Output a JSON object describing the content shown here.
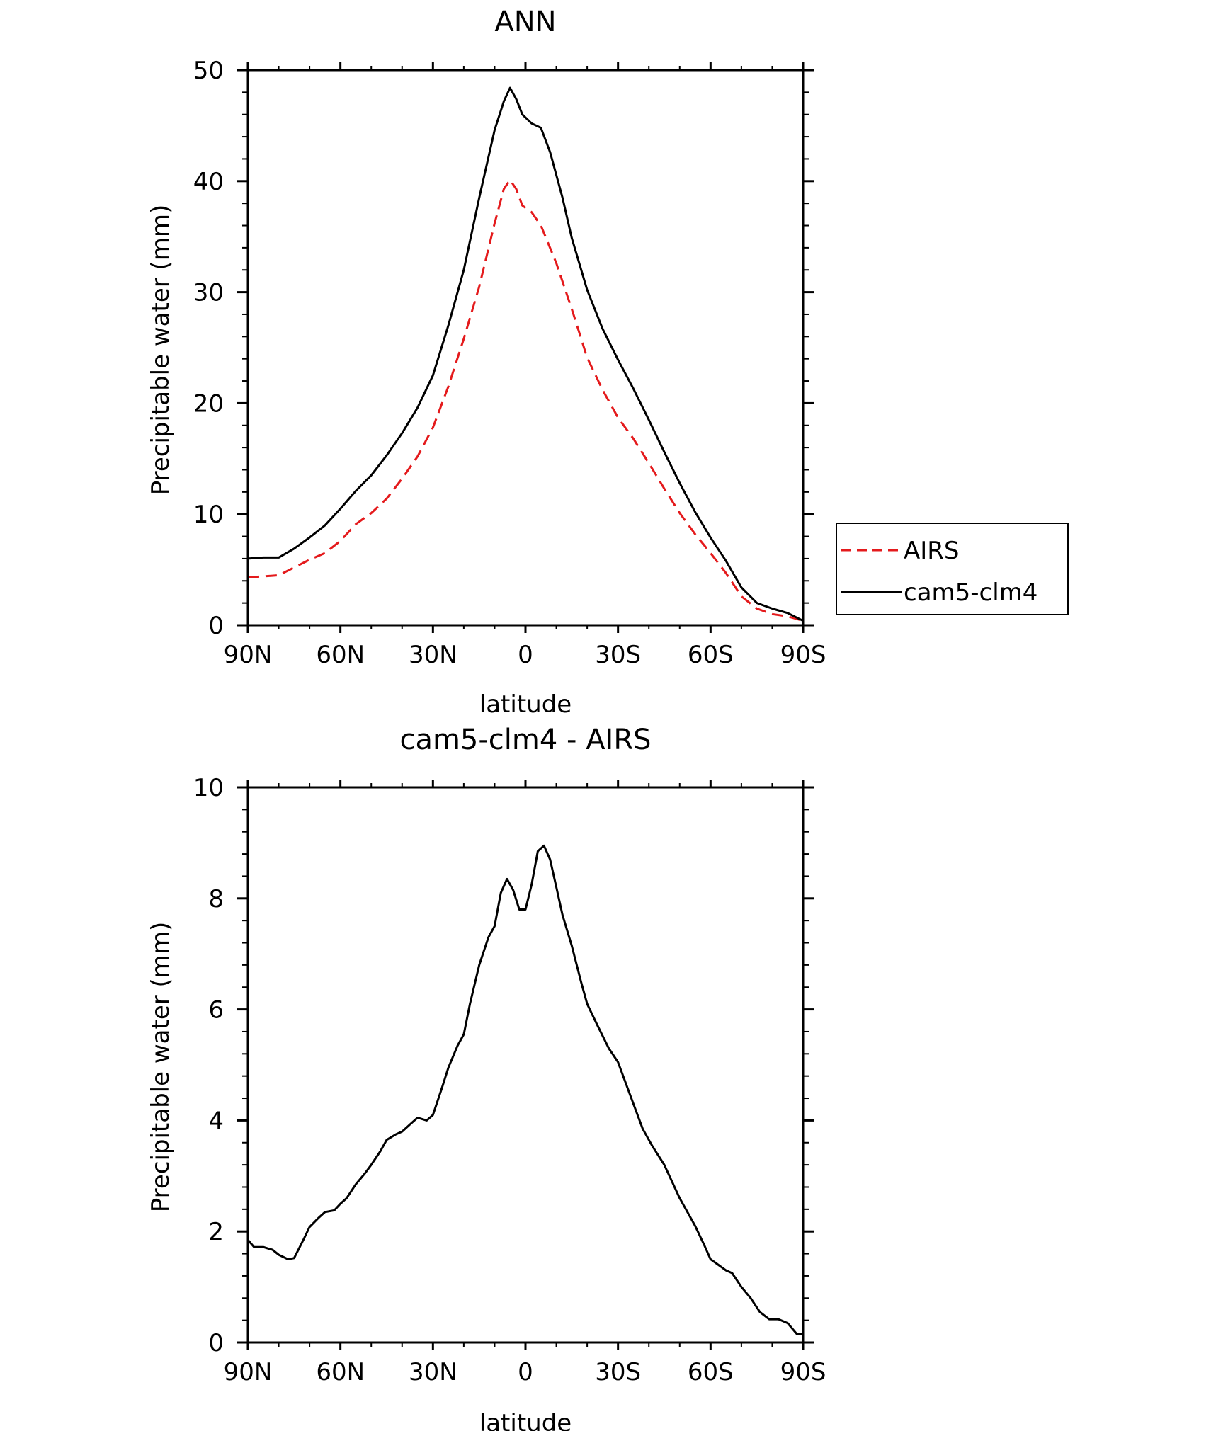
{
  "chart_data": [
    {
      "type": "line",
      "title": "ANN",
      "xlabel": "latitude",
      "ylabel": "Precipitable water (mm)",
      "xlim": [
        90,
        -90
      ],
      "ylim": [
        0,
        50
      ],
      "xticks": [
        {
          "value": 90,
          "label": "90N"
        },
        {
          "value": 60,
          "label": "60N"
        },
        {
          "value": 30,
          "label": "30N"
        },
        {
          "value": 0,
          "label": "0"
        },
        {
          "value": -30,
          "label": "30S"
        },
        {
          "value": -60,
          "label": "60S"
        },
        {
          "value": -90,
          "label": "90S"
        }
      ],
      "yticks": [
        {
          "value": 0,
          "label": "0"
        },
        {
          "value": 10,
          "label": "10"
        },
        {
          "value": 20,
          "label": "20"
        },
        {
          "value": 30,
          "label": "30"
        },
        {
          "value": 40,
          "label": "40"
        },
        {
          "value": 50,
          "label": "50"
        }
      ],
      "legend": {
        "placement": "outside-right"
      },
      "series": [
        {
          "name": "AIRS",
          "color": "#e41a1c",
          "dash": "dashed",
          "points": [
            [
              90,
              4.3
            ],
            [
              85,
              4.4
            ],
            [
              80,
              4.5
            ],
            [
              75,
              5.2
            ],
            [
              70,
              5.9
            ],
            [
              65,
              6.5
            ],
            [
              60,
              7.6
            ],
            [
              55,
              9.1
            ],
            [
              50,
              10.1
            ],
            [
              45,
              11.4
            ],
            [
              40,
              13.2
            ],
            [
              35,
              15.2
            ],
            [
              30,
              17.8
            ],
            [
              25,
              21.5
            ],
            [
              20,
              25.8
            ],
            [
              15,
              30.5
            ],
            [
              10,
              36.2
            ],
            [
              7,
              39.3
            ],
            [
              5,
              40.1
            ],
            [
              3,
              39.3
            ],
            [
              1,
              37.8
            ],
            [
              -2,
              37.2
            ],
            [
              -5,
              36.0
            ],
            [
              -10,
              32.6
            ],
            [
              -15,
              28.5
            ],
            [
              -20,
              24.1
            ],
            [
              -25,
              21.2
            ],
            [
              -30,
              18.7
            ],
            [
              -35,
              16.8
            ],
            [
              -40,
              14.6
            ],
            [
              -45,
              12.3
            ],
            [
              -50,
              10.1
            ],
            [
              -55,
              8.2
            ],
            [
              -60,
              6.5
            ],
            [
              -65,
              4.7
            ],
            [
              -70,
              2.6
            ],
            [
              -75,
              1.5
            ],
            [
              -80,
              1.0
            ],
            [
              -85,
              0.8
            ],
            [
              -90,
              0.4
            ]
          ]
        },
        {
          "name": "cam5-clm4",
          "color": "#000000",
          "dash": "solid",
          "points": [
            [
              90,
              6.0
            ],
            [
              85,
              6.1
            ],
            [
              80,
              6.1
            ],
            [
              75,
              6.9
            ],
            [
              70,
              7.9
            ],
            [
              65,
              9.0
            ],
            [
              60,
              10.5
            ],
            [
              55,
              12.1
            ],
            [
              50,
              13.5
            ],
            [
              45,
              15.3
            ],
            [
              40,
              17.3
            ],
            [
              35,
              19.6
            ],
            [
              30,
              22.5
            ],
            [
              25,
              27.0
            ],
            [
              20,
              32.0
            ],
            [
              15,
              38.5
            ],
            [
              10,
              44.6
            ],
            [
              7,
              47.2
            ],
            [
              5,
              48.4
            ],
            [
              3,
              47.4
            ],
            [
              1,
              46.0
            ],
            [
              -2,
              45.2
            ],
            [
              -5,
              44.8
            ],
            [
              -8,
              42.6
            ],
            [
              -12,
              38.5
            ],
            [
              -15,
              34.9
            ],
            [
              -20,
              30.2
            ],
            [
              -25,
              26.7
            ],
            [
              -30,
              23.9
            ],
            [
              -35,
              21.3
            ],
            [
              -40,
              18.5
            ],
            [
              -45,
              15.6
            ],
            [
              -50,
              12.8
            ],
            [
              -55,
              10.2
            ],
            [
              -60,
              7.9
            ],
            [
              -65,
              5.8
            ],
            [
              -70,
              3.4
            ],
            [
              -75,
              2.0
            ],
            [
              -80,
              1.5
            ],
            [
              -85,
              1.1
            ],
            [
              -90,
              0.4
            ]
          ]
        }
      ]
    },
    {
      "type": "line",
      "title": "cam5-clm4 - AIRS",
      "xlabel": "latitude",
      "ylabel": "Precipitable water (mm)",
      "xlim": [
        90,
        -90
      ],
      "ylim": [
        0,
        10
      ],
      "xticks": [
        {
          "value": 90,
          "label": "90N"
        },
        {
          "value": 60,
          "label": "60N"
        },
        {
          "value": 30,
          "label": "30N"
        },
        {
          "value": 0,
          "label": "0"
        },
        {
          "value": -30,
          "label": "30S"
        },
        {
          "value": -60,
          "label": "60S"
        },
        {
          "value": -90,
          "label": "90S"
        }
      ],
      "yticks": [
        {
          "value": 0,
          "label": "0"
        },
        {
          "value": 2,
          "label": "2"
        },
        {
          "value": 4,
          "label": "4"
        },
        {
          "value": 6,
          "label": "6"
        },
        {
          "value": 8,
          "label": "8"
        },
        {
          "value": 10,
          "label": "10"
        }
      ],
      "series": [
        {
          "color": "#000000",
          "dash": "solid",
          "points": [
            [
              90,
              1.85
            ],
            [
              88,
              1.72
            ],
            [
              85,
              1.72
            ],
            [
              82,
              1.67
            ],
            [
              80,
              1.58
            ],
            [
              77,
              1.5
            ],
            [
              75,
              1.52
            ],
            [
              72,
              1.85
            ],
            [
              70,
              2.08
            ],
            [
              67,
              2.25
            ],
            [
              65,
              2.35
            ],
            [
              62,
              2.38
            ],
            [
              60,
              2.5
            ],
            [
              58,
              2.6
            ],
            [
              55,
              2.85
            ],
            [
              52,
              3.05
            ],
            [
              50,
              3.2
            ],
            [
              47,
              3.45
            ],
            [
              45,
              3.65
            ],
            [
              42,
              3.75
            ],
            [
              40,
              3.8
            ],
            [
              37,
              3.95
            ],
            [
              35,
              4.05
            ],
            [
              32,
              4.0
            ],
            [
              30,
              4.1
            ],
            [
              27,
              4.6
            ],
            [
              25,
              4.95
            ],
            [
              22,
              5.35
            ],
            [
              20,
              5.55
            ],
            [
              18,
              6.1
            ],
            [
              15,
              6.8
            ],
            [
              12,
              7.3
            ],
            [
              10,
              7.5
            ],
            [
              8,
              8.1
            ],
            [
              6,
              8.35
            ],
            [
              4,
              8.15
            ],
            [
              2,
              7.8
            ],
            [
              0,
              7.8
            ],
            [
              -2,
              8.25
            ],
            [
              -4,
              8.85
            ],
            [
              -6,
              8.95
            ],
            [
              -8,
              8.7
            ],
            [
              -10,
              8.2
            ],
            [
              -12,
              7.7
            ],
            [
              -15,
              7.15
            ],
            [
              -18,
              6.5
            ],
            [
              -20,
              6.1
            ],
            [
              -23,
              5.75
            ],
            [
              -27,
              5.3
            ],
            [
              -30,
              5.05
            ],
            [
              -33,
              4.6
            ],
            [
              -35,
              4.3
            ],
            [
              -38,
              3.85
            ],
            [
              -41,
              3.55
            ],
            [
              -45,
              3.2
            ],
            [
              -50,
              2.6
            ],
            [
              -55,
              2.1
            ],
            [
              -58,
              1.75
            ],
            [
              -60,
              1.5
            ],
            [
              -65,
              1.3
            ],
            [
              -67,
              1.25
            ],
            [
              -70,
              1.0
            ],
            [
              -73,
              0.8
            ],
            [
              -76,
              0.55
            ],
            [
              -79,
              0.42
            ],
            [
              -82,
              0.42
            ],
            [
              -85,
              0.35
            ],
            [
              -88,
              0.15
            ],
            [
              -90,
              0.15
            ]
          ]
        }
      ]
    }
  ]
}
